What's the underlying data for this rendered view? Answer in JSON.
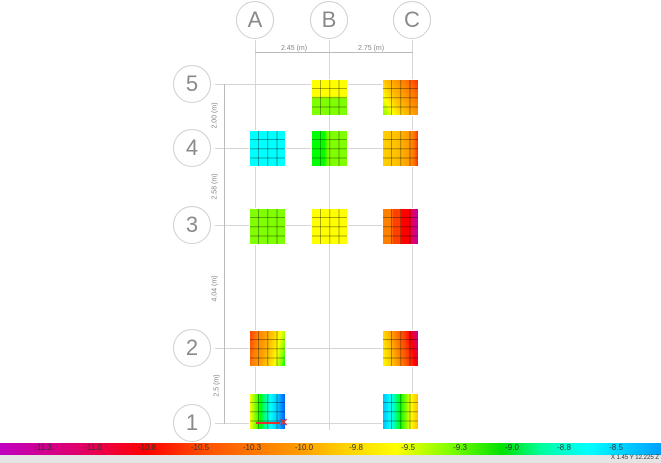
{
  "grid": {
    "columns": [
      "A",
      "B",
      "C"
    ],
    "rows": [
      "5",
      "4",
      "3",
      "2",
      "1"
    ]
  },
  "dimensions": {
    "horizontal": [
      "2.45 (m)",
      "2.75 (m)"
    ],
    "vertical": [
      "2.00 (m)",
      "2.58 (m)",
      "4.04 (m)",
      "2.5 (m)"
    ]
  },
  "pads": [
    {
      "col": "B",
      "row": "5",
      "gradient": "180deg,#ffff00 0%,#ffff00 45%,#80ff00 55%,#80ff00 100%"
    },
    {
      "col": "C",
      "row": "5",
      "gradient": "60deg,#80ff00 0%,#ffff00 20%,#ffc000 40%,#ff9a00 60%,#ff7000 80%,#ff3000 100%"
    },
    {
      "col": "A",
      "row": "4",
      "gradient": "90deg,#00ffff 0%,#00ffff 100%"
    },
    {
      "col": "B",
      "row": "4",
      "gradient": "90deg,#00ff00 0%,#00ff00 35%,#80ff00 45%,#80ff00 100%"
    },
    {
      "col": "C",
      "row": "4",
      "gradient": "90deg,#ffd000 0%,#ffc000 40%,#ff9a00 75%,#ff7000 90%,#ff3000 100%"
    },
    {
      "col": "A",
      "row": "3",
      "gradient": "90deg,#80ff00 0%,#80ff00 100%"
    },
    {
      "col": "B",
      "row": "3",
      "gradient": "90deg,#ffff00 0%,#ffff00 100%"
    },
    {
      "col": "C",
      "row": "3",
      "gradient": "90deg,#ff8000 0%,#ff8000 25%,#ff4000 30%,#ff4000 50%,#ff0000 55%,#ff0000 75%,#e0006a 85%,#c000a0 100%"
    },
    {
      "col": "A",
      "row": "2",
      "gradient": "100deg,#ff4000 0%,#ff8000 20%,#ffa000 40%,#ffd000 60%,#ffff00 75%,#80ff00 90%,#00ff00 100%"
    },
    {
      "col": "C",
      "row": "2",
      "gradient": "80deg,#ffff00 0%,#ffc000 25%,#ff8000 45%,#ff4000 65%,#ff0000 80%,#c000a0 100%"
    },
    {
      "col": "A",
      "row": "1",
      "gradient": "90deg,#ffff00 0%,#80ff00 15%,#00ff00 30%,#00ffa0 45%,#00ffff 60%,#00c0ff 80%,#0060ff 100%"
    },
    {
      "col": "C",
      "row": "1",
      "gradient": "90deg,#00c0ff 0%,#00ffff 20%,#00ffa0 35%,#00ff00 50%,#80ff00 65%,#ffff00 80%,#ffc000 100%"
    }
  ],
  "legend": {
    "labels": [
      "-11.3",
      "-11.0",
      "-10.8",
      "-10.5",
      "-10.3",
      "-10.0",
      "-9.8",
      "-9.5",
      "-9.3",
      "-9.0",
      "-8.8",
      "-8.5"
    ]
  },
  "status": {
    "coords": "X 1.45  Y 12.225  Z"
  }
}
